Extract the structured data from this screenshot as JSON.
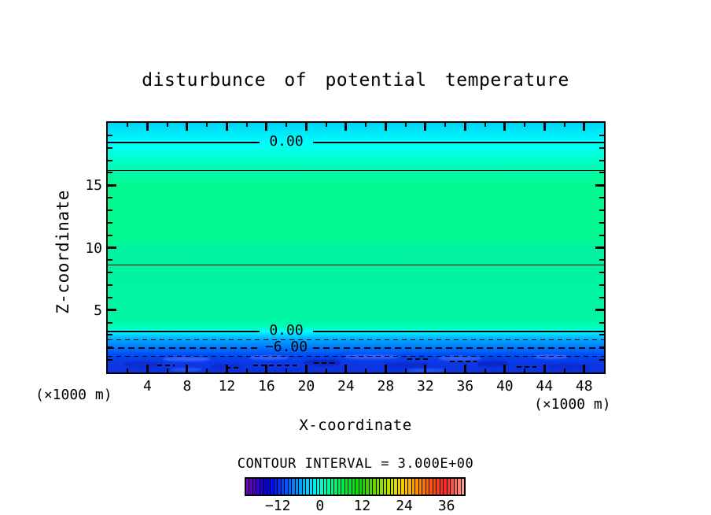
{
  "chart_data": {
    "type": "heatmap",
    "title": "disturbunce of potential temperature",
    "xlabel": "X-coordinate",
    "ylabel": "Z-coordinate",
    "x_unit_label": "(×1000 m)",
    "xlim": [
      0,
      50
    ],
    "ylim": [
      0,
      20
    ],
    "x_tick_labels": [
      "4",
      "8",
      "12",
      "16",
      "20",
      "24",
      "28",
      "32",
      "36",
      "40",
      "44",
      "48"
    ],
    "x_tick_values": [
      4,
      8,
      12,
      16,
      20,
      24,
      28,
      32,
      36,
      40,
      44,
      48
    ],
    "x_minor_step": 2,
    "y_tick_labels": [
      "5",
      "10",
      "15"
    ],
    "y_tick_values": [
      5,
      10,
      15
    ],
    "y_minor_step": 1,
    "grid": false,
    "contour_interval": 3.0,
    "contour_interval_label": "CONTOUR INTERVAL = 3.000E+00",
    "contours": [
      {
        "value": 0.0,
        "z": 18.45,
        "style": "solid-thick",
        "label": "0.00"
      },
      {
        "value": 3.0,
        "z": 16.2,
        "style": "solid-thin",
        "label": null
      },
      {
        "value": 3.0,
        "z": 8.6,
        "style": "solid-thin",
        "label": null
      },
      {
        "value": 0.0,
        "z": 3.28,
        "style": "solid-thick",
        "label": "0.00"
      },
      {
        "value": -3.0,
        "z": 2.62,
        "style": "dashed-thin",
        "label": null
      },
      {
        "value": -6.0,
        "z": 1.97,
        "style": "dashed-thick",
        "label": "−6.00"
      },
      {
        "value": -9.0,
        "z": 1.29,
        "style": "dashed-thin",
        "label": null
      }
    ],
    "fill_gradient": [
      [
        "0%",
        "#00d2f2"
      ],
      [
        "5%",
        "#00effb"
      ],
      [
        "7.9%",
        "#00ffff"
      ],
      [
        "13%",
        "#00ffd6"
      ],
      [
        "19%",
        "#00fcae"
      ],
      [
        "24%",
        "#00fa90"
      ],
      [
        "47%",
        "#00fa90"
      ],
      [
        "50%",
        "#00f2a2"
      ],
      [
        "78%",
        "#00f5a2"
      ],
      [
        "81%",
        "#00fab0"
      ],
      [
        "82.8%",
        "#00ffd8"
      ],
      [
        "83.6%",
        "#00ffff"
      ],
      [
        "85.5%",
        "#00c8ff"
      ],
      [
        "87.2%",
        "#00a2ff"
      ],
      [
        "90%",
        "#0077ff"
      ],
      [
        "93.2%",
        "#0048f2"
      ],
      [
        "96%",
        "#0c38e6"
      ],
      [
        "100%",
        "#0d31dd"
      ]
    ],
    "colorbar": {
      "range": [
        -21,
        41
      ],
      "stripe_step": 1,
      "tick_values": [
        -12,
        0,
        12,
        24,
        36
      ],
      "tick_labels": [
        "−12",
        "0",
        "12",
        "24",
        "36"
      ],
      "anchors": [
        [
          -21,
          "#7a00b8"
        ],
        [
          -18,
          "#3f00cf"
        ],
        [
          -15,
          "#0000e0"
        ],
        [
          -12,
          "#0022ff"
        ],
        [
          -9,
          "#0061ff"
        ],
        [
          -6,
          "#009bff"
        ],
        [
          -3,
          "#00d9ff"
        ],
        [
          0,
          "#00ffd2"
        ],
        [
          3,
          "#00fa8c"
        ],
        [
          6,
          "#00f050"
        ],
        [
          9,
          "#00e414"
        ],
        [
          12,
          "#10d600"
        ],
        [
          15,
          "#58d800"
        ],
        [
          18,
          "#9ade00"
        ],
        [
          21,
          "#d8e000"
        ],
        [
          24,
          "#fdc500"
        ],
        [
          27,
          "#ff9800"
        ],
        [
          30,
          "#ff6a00"
        ],
        [
          33,
          "#ff4010"
        ],
        [
          36,
          "#fb2828"
        ],
        [
          39,
          "#ff7a68"
        ],
        [
          41,
          "#ffa898"
        ]
      ]
    }
  }
}
